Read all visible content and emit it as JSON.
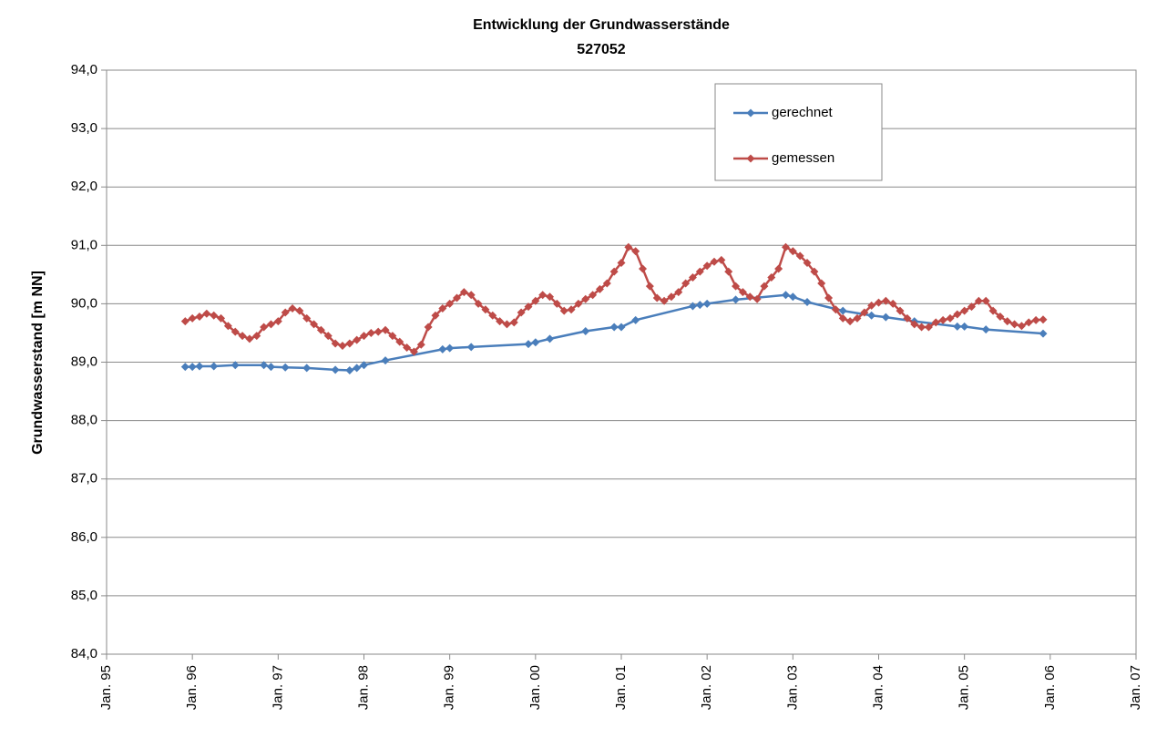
{
  "chart_data": {
    "type": "line",
    "title": "Entwicklung der Grundwasserstände",
    "subtitle": "527052",
    "y_label": "Grundwasserstand [m NN]",
    "xlim": [
      "1995-01",
      "2007-01"
    ],
    "xticks": [
      {
        "value": "1995-01",
        "label": "Jan. 95"
      },
      {
        "value": "1996-01",
        "label": "Jan. 96"
      },
      {
        "value": "1997-01",
        "label": "Jan. 97"
      },
      {
        "value": "1998-01",
        "label": "Jan. 98"
      },
      {
        "value": "1999-01",
        "label": "Jan. 99"
      },
      {
        "value": "2000-01",
        "label": "Jan. 00"
      },
      {
        "value": "2001-01",
        "label": "Jan. 01"
      },
      {
        "value": "2002-01",
        "label": "Jan. 02"
      },
      {
        "value": "2003-01",
        "label": "Jan. 03"
      },
      {
        "value": "2004-01",
        "label": "Jan. 04"
      },
      {
        "value": "2005-01",
        "label": "Jan. 05"
      },
      {
        "value": "2006-01",
        "label": "Jan. 06"
      },
      {
        "value": "2007-01",
        "label": "Jan. 07"
      }
    ],
    "ylim": [
      84,
      94
    ],
    "yticks": [
      {
        "value": 84,
        "label": "84,0"
      },
      {
        "value": 85,
        "label": "85,0"
      },
      {
        "value": 86,
        "label": "86,0"
      },
      {
        "value": 87,
        "label": "87,0"
      },
      {
        "value": 88,
        "label": "88,0"
      },
      {
        "value": 89,
        "label": "89,0"
      },
      {
        "value": 90,
        "label": "90,0"
      },
      {
        "value": 91,
        "label": "91,0"
      },
      {
        "value": 92,
        "label": "92,0"
      },
      {
        "value": 93,
        "label": "93,0"
      },
      {
        "value": 94,
        "label": "94,0"
      }
    ],
    "grid": true,
    "series": [
      {
        "name": "gerechnet",
        "color": "#4a7ebb",
        "x": [
          "1995-12",
          "1996-01",
          "1996-02",
          "1996-04",
          "1996-07",
          "1996-11",
          "1996-12",
          "1997-02",
          "1997-05",
          "1997-09",
          "1997-11",
          "1997-12",
          "1998-01",
          "1998-04",
          "1998-12",
          "1999-01",
          "1999-04",
          "1999-12",
          "2000-01",
          "2000-03",
          "2000-08",
          "2000-12",
          "2001-01",
          "2001-03",
          "2001-11",
          "2001-12",
          "2002-01",
          "2002-05",
          "2002-12",
          "2003-01",
          "2003-03",
          "2003-08",
          "2003-12",
          "2004-02",
          "2004-06",
          "2004-12",
          "2005-01",
          "2005-04",
          "2005-12"
        ],
        "values": [
          88.92,
          88.92,
          88.93,
          88.93,
          88.95,
          88.95,
          88.92,
          88.91,
          88.9,
          88.87,
          88.86,
          88.9,
          88.95,
          89.03,
          89.22,
          89.24,
          89.26,
          89.31,
          89.34,
          89.4,
          89.53,
          89.6,
          89.6,
          89.72,
          89.96,
          89.98,
          90.0,
          90.07,
          90.15,
          90.12,
          90.03,
          89.88,
          89.8,
          89.77,
          89.7,
          89.61,
          89.61,
          89.56,
          89.49
        ]
      },
      {
        "name": "gemessen",
        "color": "#be4b48",
        "x": [
          "1995-12",
          "1996-01",
          "1996-02",
          "1996-03",
          "1996-04",
          "1996-05",
          "1996-06",
          "1996-07",
          "1996-08",
          "1996-09",
          "1996-10",
          "1996-11",
          "1996-12",
          "1997-01",
          "1997-02",
          "1997-03",
          "1997-04",
          "1997-05",
          "1997-06",
          "1997-07",
          "1997-08",
          "1997-09",
          "1997-10",
          "1997-11",
          "1997-12",
          "1998-01",
          "1998-02",
          "1998-03",
          "1998-04",
          "1998-05",
          "1998-06",
          "1998-07",
          "1998-08",
          "1998-09",
          "1998-10",
          "1998-11",
          "1998-12",
          "1999-01",
          "1999-02",
          "1999-03",
          "1999-04",
          "1999-05",
          "1999-06",
          "1999-07",
          "1999-08",
          "1999-09",
          "1999-10",
          "1999-11",
          "1999-12",
          "2000-01",
          "2000-02",
          "2000-03",
          "2000-04",
          "2000-05",
          "2000-06",
          "2000-07",
          "2000-08",
          "2000-09",
          "2000-10",
          "2000-11",
          "2000-12",
          "2001-01",
          "2001-02",
          "2001-03",
          "2001-04",
          "2001-05",
          "2001-06",
          "2001-07",
          "2001-08",
          "2001-09",
          "2001-10",
          "2001-11",
          "2001-12",
          "2002-01",
          "2002-02",
          "2002-03",
          "2002-04",
          "2002-05",
          "2002-06",
          "2002-07",
          "2002-08",
          "2002-09",
          "2002-10",
          "2002-11",
          "2002-12",
          "2003-01",
          "2003-02",
          "2003-03",
          "2003-04",
          "2003-05",
          "2003-06",
          "2003-07",
          "2003-08",
          "2003-09",
          "2003-10",
          "2003-11",
          "2003-12",
          "2004-01",
          "2004-02",
          "2004-03",
          "2004-04",
          "2004-05",
          "2004-06",
          "2004-07",
          "2004-08",
          "2004-09",
          "2004-10",
          "2004-11",
          "2004-12",
          "2005-01",
          "2005-02",
          "2005-03",
          "2005-04",
          "2005-05",
          "2005-06",
          "2005-07",
          "2005-08",
          "2005-09",
          "2005-10",
          "2005-11",
          "2005-12"
        ],
        "values": [
          89.7,
          89.75,
          89.78,
          89.83,
          89.8,
          89.75,
          89.62,
          89.52,
          89.45,
          89.4,
          89.45,
          89.6,
          89.65,
          89.7,
          89.85,
          89.92,
          89.88,
          89.75,
          89.65,
          89.55,
          89.45,
          89.32,
          89.28,
          89.32,
          89.38,
          89.45,
          89.5,
          89.52,
          89.55,
          89.45,
          89.35,
          89.25,
          89.18,
          89.3,
          89.6,
          89.8,
          89.92,
          90.0,
          90.1,
          90.2,
          90.15,
          90.0,
          89.9,
          89.8,
          89.7,
          89.65,
          89.68,
          89.85,
          89.95,
          90.05,
          90.15,
          90.12,
          90.0,
          89.88,
          89.9,
          90.0,
          90.08,
          90.15,
          90.25,
          90.35,
          90.55,
          90.7,
          90.97,
          90.9,
          90.6,
          90.3,
          90.1,
          90.05,
          90.12,
          90.2,
          90.35,
          90.45,
          90.55,
          90.65,
          90.72,
          90.75,
          90.55,
          90.3,
          90.2,
          90.12,
          90.08,
          90.3,
          90.45,
          90.6,
          90.97,
          90.9,
          90.82,
          90.7,
          90.55,
          90.35,
          90.1,
          89.9,
          89.75,
          89.7,
          89.75,
          89.85,
          89.97,
          90.02,
          90.05,
          90.0,
          89.88,
          89.75,
          89.65,
          89.6,
          89.6,
          89.68,
          89.72,
          89.75,
          89.82,
          89.88,
          89.95,
          90.05,
          90.05,
          89.88,
          89.78,
          89.7,
          89.65,
          89.62,
          89.68,
          89.72,
          89.73
        ]
      }
    ]
  }
}
